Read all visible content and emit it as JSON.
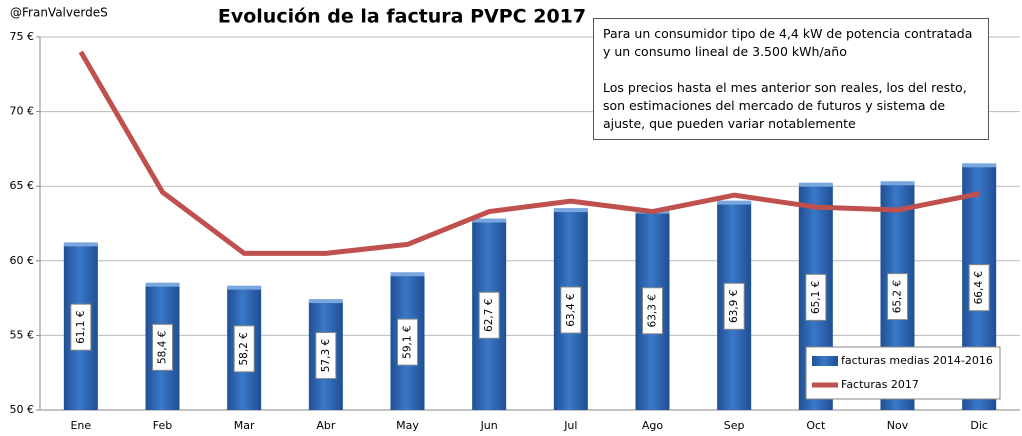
{
  "chart_data": {
    "type": "bar",
    "title": "Evolución de la factura PVPC 2017",
    "subtitle": "@FranValverdeS",
    "annotations": [
      "Para un consumidor tipo de 4,4 kW de potencia contratada y un consumo lineal de 3.500 kWh/año",
      "Los precios hasta el mes anterior son reales, los del resto, son estimaciones del mercado de futuros y sistema de ajuste, que pueden variar notablemente"
    ],
    "categories": [
      "Ene",
      "Feb",
      "Mar",
      "Abr",
      "May",
      "Jun",
      "Jul",
      "Ago",
      "Sep",
      "Oct",
      "Nov",
      "Dic"
    ],
    "series": [
      {
        "name": "facturas medias 2014-2016",
        "type": "bar",
        "color": "#3a78c8",
        "values": [
          61.1,
          58.4,
          58.2,
          57.3,
          59.1,
          62.7,
          63.4,
          63.3,
          63.9,
          65.1,
          65.2,
          66.4
        ],
        "value_labels": [
          "61,1 €",
          "58,4 €",
          "58,2 €",
          "57,3 €",
          "59,1 €",
          "62,7 €",
          "63,4 €",
          "63,3 €",
          "63,9 €",
          "65,1 €",
          "65,2 €",
          "66,4 €"
        ]
      },
      {
        "name": "Facturas 2017",
        "type": "line",
        "color": "#c0504d",
        "values": [
          74.0,
          64.6,
          60.5,
          60.5,
          61.1,
          63.3,
          64.0,
          63.3,
          64.4,
          63.6,
          63.4,
          64.5
        ]
      }
    ],
    "ylim": [
      50,
      75
    ],
    "yticks": [
      {
        "value": 50,
        "label": "50 €"
      },
      {
        "value": 55,
        "label": "55 €"
      },
      {
        "value": 60,
        "label": "60 €"
      },
      {
        "value": 65,
        "label": "65 €"
      },
      {
        "value": 70,
        "label": "70 €"
      },
      {
        "value": 75,
        "label": "75 €"
      }
    ],
    "grid": true,
    "legend": "lower-right"
  }
}
